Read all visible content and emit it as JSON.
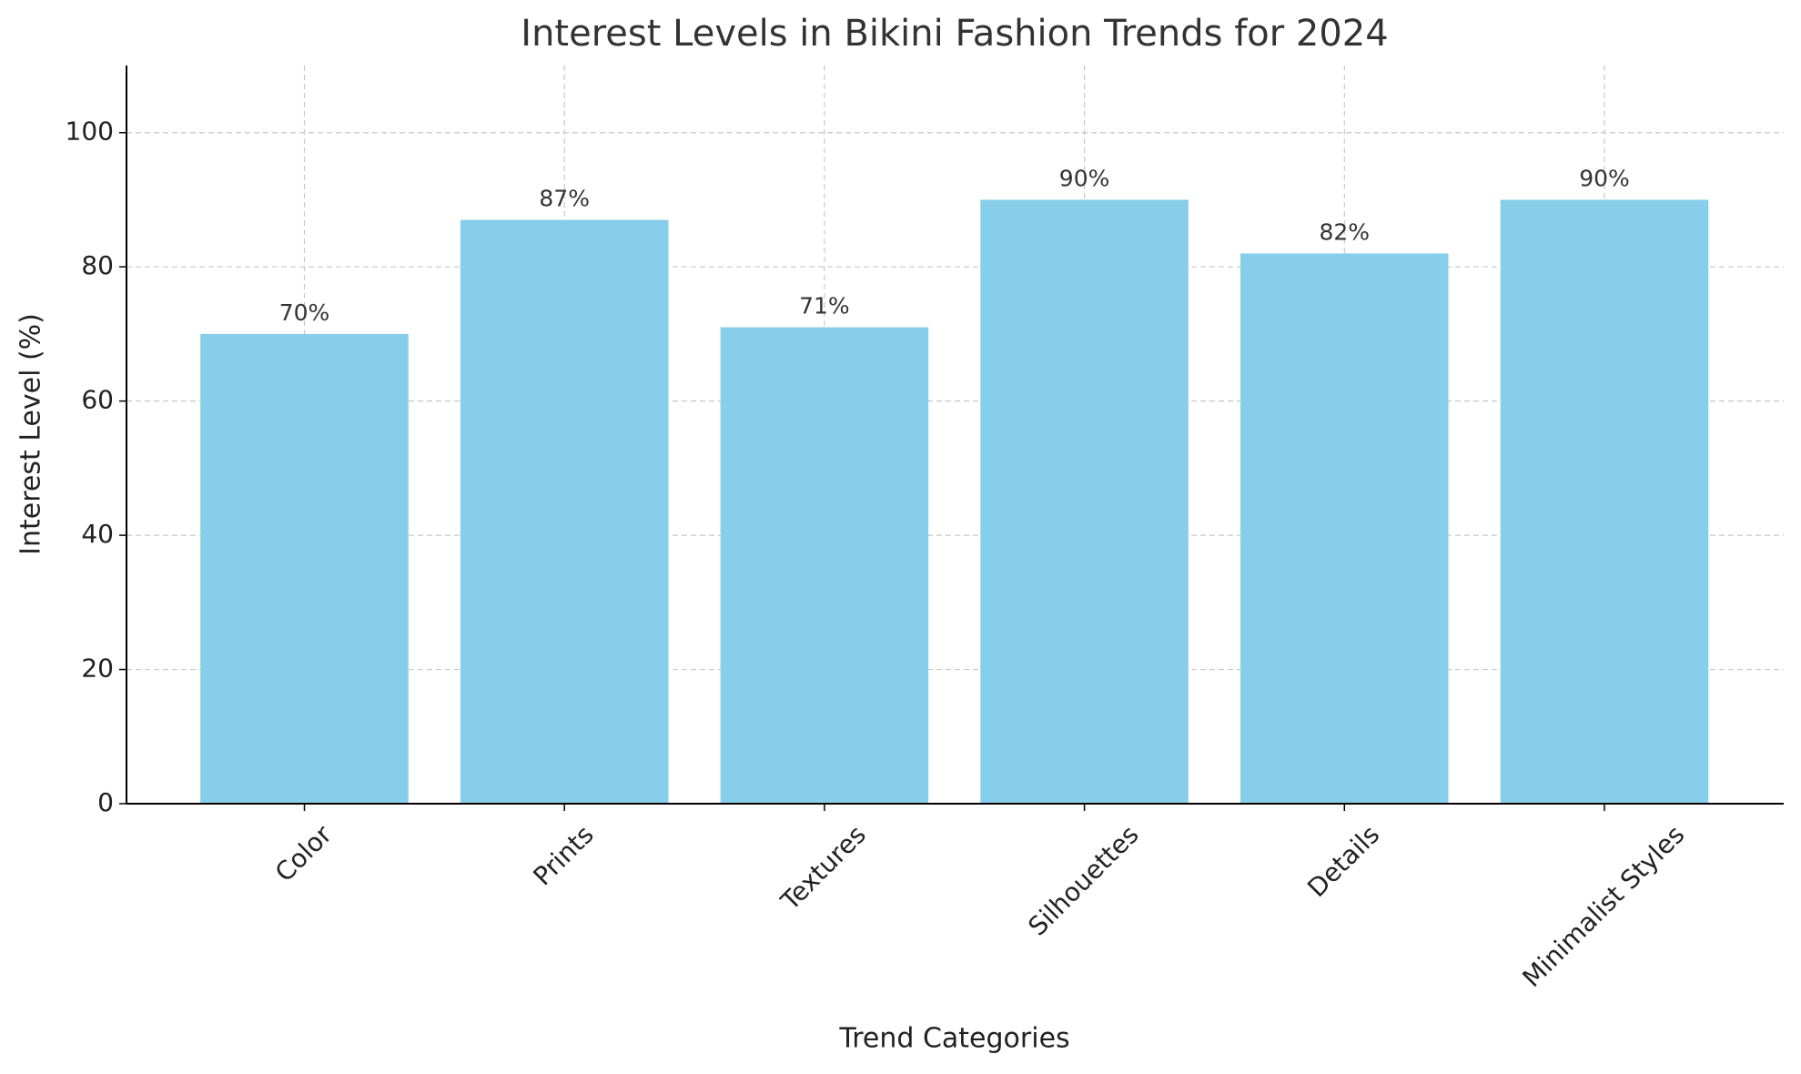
{
  "chart_data": {
    "type": "bar",
    "title": "Interest Levels in Bikini Fashion Trends for 2024",
    "x_label": "Trend Categories",
    "y_label": "Interest Level (%)",
    "categories": [
      "Color",
      "Prints",
      "Textures",
      "Silhouettes",
      "Details",
      "Minimalist Styles"
    ],
    "values": [
      70,
      87,
      71,
      90,
      82,
      90
    ],
    "value_labels": [
      "70%",
      "87%",
      "71%",
      "90%",
      "82%",
      "90%"
    ],
    "color": "#87ceeb",
    "ylim": [
      0,
      110
    ],
    "yticks": [
      0,
      20,
      40,
      60,
      80,
      100
    ],
    "grid": true
  }
}
